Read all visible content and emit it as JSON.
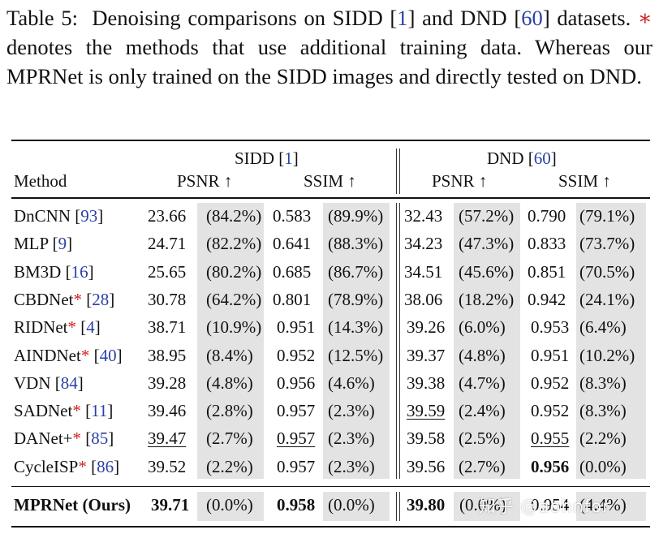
{
  "caption": {
    "label": "Table 5:",
    "t1": "Denoising comparisons on SIDD [",
    "ref_sidd": "1",
    "t2": "] and DND [",
    "ref_dnd": "60",
    "t3": "] datasets.",
    "star": "∗",
    "t4": "denotes the methods that use additional training data. Whereas our MPRNet is only trained on the SIDD images and directly tested on DND."
  },
  "header": {
    "method": "Method",
    "sidd_name": "SIDD [",
    "sidd_ref": "1",
    "sidd_close": "]",
    "dnd_name": "DND [",
    "dnd_ref": "60",
    "dnd_close": "]",
    "psnr": "PSNR ↑",
    "ssim": "SSIM ↑"
  },
  "rows": [
    {
      "name": "DnCNN",
      "star": "",
      "ref": "93",
      "v": [
        "23.66",
        "(84.2%)",
        "0.583",
        "(89.9%)",
        "32.43",
        "(57.2%)",
        "0.790",
        "(79.1%)"
      ]
    },
    {
      "name": "MLP",
      "star": "",
      "ref": "9",
      "v": [
        "24.71",
        "(82.2%)",
        "0.641",
        "(88.3%)",
        "34.23",
        "(47.3%)",
        "0.833",
        "(73.7%)"
      ]
    },
    {
      "name": "BM3D",
      "star": "",
      "ref": "16",
      "v": [
        "25.65",
        "(80.2%)",
        "0.685",
        "(86.7%)",
        "34.51",
        "(45.6%)",
        "0.851",
        "(70.5%)"
      ]
    },
    {
      "name": "CBDNet",
      "star": "*",
      "ref": "28",
      "v": [
        "30.78",
        "(64.2%)",
        "0.801",
        "(78.9%)",
        "38.06",
        "(18.2%)",
        "0.942",
        "(24.1%)"
      ]
    },
    {
      "name": "RIDNet",
      "star": "*",
      "ref": "4",
      "v": [
        "38.71",
        "(10.9%)",
        "0.951",
        "(14.3%)",
        "39.26",
        "(6.0%)",
        "0.953",
        "(6.4%)"
      ]
    },
    {
      "name": "AINDNet",
      "star": "*",
      "ref": "40",
      "v": [
        "38.95",
        "(8.4%)",
        "0.952",
        "(12.5%)",
        "39.37",
        "(4.8%)",
        "0.951",
        "(10.2%)"
      ]
    },
    {
      "name": "VDN",
      "star": "",
      "ref": "84",
      "v": [
        "39.28",
        "(4.8%)",
        "0.956",
        "(4.6%)",
        "39.38",
        "(4.7%)",
        "0.952",
        "(8.3%)"
      ]
    },
    {
      "name": "SADNet",
      "star": "*",
      "ref": "11",
      "v": [
        "39.46",
        "(2.8%)",
        "0.957",
        "(2.3%)",
        "39.59",
        "(2.4%)",
        "0.952",
        "(8.3%)"
      ]
    },
    {
      "name": "DANet+",
      "star": "*",
      "ref": "85",
      "v": [
        "39.47",
        "(2.7%)",
        "0.957",
        "(2.3%)",
        "39.58",
        "(2.5%)",
        "0.955",
        "(2.2%)"
      ]
    },
    {
      "name": "CycleISP",
      "star": "*",
      "ref": "86",
      "v": [
        "39.52",
        "(2.2%)",
        "0.957",
        "(2.3%)",
        "39.56",
        "(2.7%)",
        "0.956",
        "(0.0%)"
      ]
    }
  ],
  "ours": {
    "name": "MPRNet (Ours)",
    "v": [
      "39.71",
      "(0.0%)",
      "0.958",
      "(0.0%)",
      "39.80",
      "(0.0%)",
      "0.954",
      "(4.4%)"
    ]
  },
  "watermark": "知乎 @aohnfor"
}
